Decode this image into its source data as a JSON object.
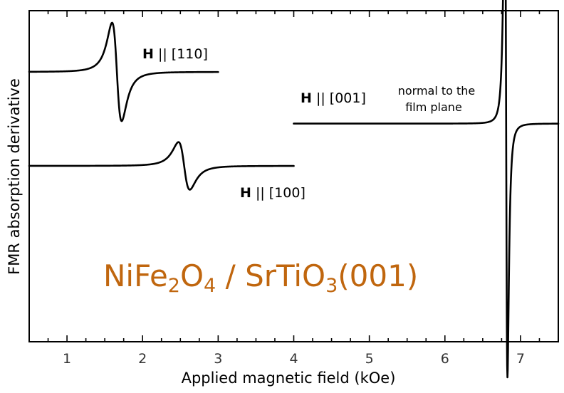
{
  "colors": {
    "title": "#c0660e",
    "line": "#000000"
  },
  "chart_data": {
    "type": "line",
    "xlabel": "Applied magnetic field (kOe)",
    "ylabel": "FMR absorption derivative",
    "xlim": [
      0.5,
      7.5
    ],
    "x_ticks": [
      1,
      2,
      3,
      4,
      5,
      6,
      7
    ],
    "y_ticks_shown": false,
    "grid": false,
    "title_parts": {
      "p1": "NiFe",
      "s1": "2",
      "p2": "O",
      "s2": "4",
      "p3": " / SrTiO",
      "s3": "3",
      "p4": "(001)"
    },
    "annotations": {
      "h110_bold": "H",
      "h110_rest": " || [110]",
      "h100_bold": "H",
      "h100_rest": " || [100]",
      "h001_bold": "H",
      "h001_rest": " || [001]",
      "normal_line1": "normal to the",
      "normal_line2": "film plane"
    },
    "series": [
      {
        "id": "h110",
        "x_range": [
          0.5,
          3.0
        ],
        "baseline": 0.0,
        "resonance_field": 1.66,
        "amplitude": 0.62,
        "width": 0.11
      },
      {
        "id": "h100",
        "x_range": [
          0.5,
          4.0
        ],
        "baseline": -1.0,
        "resonance_field": 2.55,
        "amplitude": 0.3,
        "width": 0.13
      },
      {
        "id": "h001",
        "x_range": [
          4.0,
          7.5
        ],
        "baseline": -0.55,
        "resonance_field": 6.81,
        "amplitude": 3.2,
        "width": 0.03
      }
    ]
  }
}
